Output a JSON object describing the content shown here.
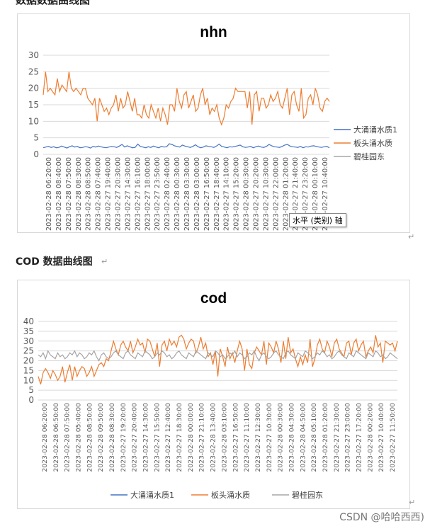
{
  "top_heading": "数据数据曲线图",
  "section_heading": "COD 数据曲线图",
  "paragraph_mark": "↵",
  "tooltip": "水平 (类别) 轴",
  "watermark": "CSDN @哈哈西西)",
  "colors": {
    "series1": "#4472c4",
    "series2": "#ed7d31",
    "series3": "#a5a5a5",
    "grid": "#d9d9d9",
    "axis_text": "#595959"
  },
  "chart_data": [
    {
      "type": "line",
      "title": "nhn",
      "ylim": [
        0,
        30
      ],
      "yticks": [
        0,
        5,
        10,
        15,
        20,
        25,
        30
      ],
      "grid": true,
      "legend": "right",
      "x_tick_labels": [
        "2023-02-28 06:20:00",
        "2023-02-28 08:40:00",
        "2023-02-28 07:50:00",
        "2023-02-28 08:30:00",
        "2023-02-28 08:50:00",
        "2023-02-28 07:40:00",
        "2023-02-27 19:40:00",
        "2023-02-27 20:30:00",
        "2023-02-27 14:30:00",
        "2023-02-27 16:10:00",
        "2023-02-27 18:00:00",
        "2023-02-27 23:50:00",
        "2023-02-28 02:40:00",
        "2023-02-28 00:30:00",
        "2023-02-28 03:30:00",
        "2023-02-28 03:00:00",
        "2023-02-27 16:50:00",
        "2023-02-27 18:40:00",
        "2023-02-27 14:10:00",
        "2023-02-27 15:20:00",
        "2023-02-28 00:30:00",
        "2023-02-27 20:20:00",
        "2023-02-27 10:30:00",
        "2023-02-27 22:00:00",
        "2023-02-28 01:20:00",
        "2023-02-27 21:40:00",
        "2023-02-27 23:20:00",
        "2023-02-28 00:10:00",
        "2023-02-27 10:40:00"
      ],
      "series": [
        {
          "name": "大涌涌水质1",
          "values": [
            2.0,
            2.2,
            2.4,
            2.1,
            2.3,
            2.0,
            2.1,
            2.5,
            2.2,
            1.9,
            2.3,
            2.6,
            2.2,
            2.4,
            2.0,
            2.1,
            2.3,
            2.2,
            1.9,
            2.4,
            2.2,
            2.5,
            2.3,
            2.1,
            2.0,
            2.2,
            2.4,
            2.3,
            2.1,
            2.5,
            3.0,
            2.2,
            2.6,
            2.3,
            2.0,
            2.1,
            3.1,
            2.4,
            2.2,
            2.0,
            2.3,
            2.1,
            2.5,
            2.2,
            2.0,
            2.4,
            2.2,
            2.3,
            3.2,
            3.0,
            2.6,
            2.4,
            2.2,
            2.8,
            2.5,
            2.3,
            2.1,
            2.4,
            2.9,
            2.3,
            2.0,
            2.2,
            2.6,
            2.4,
            2.3,
            2.1,
            2.5,
            3.1,
            2.4,
            2.2,
            2.0,
            2.3,
            2.2,
            2.4,
            2.6,
            2.8,
            2.3,
            2.1,
            2.2,
            2.4,
            2.0,
            2.3,
            2.5,
            2.2,
            2.1,
            2.4,
            3.0,
            2.6,
            2.3,
            2.2,
            2.1,
            2.4,
            2.8,
            3.0,
            2.5,
            2.3,
            2.2,
            2.1,
            2.4,
            2.0,
            2.3,
            2.2,
            2.5,
            2.6,
            2.4,
            2.2,
            2.1,
            2.3,
            2.4,
            2.0
          ]
        },
        {
          "name": "板头涌水质",
          "values": [
            18,
            25,
            19,
            20,
            19,
            18,
            23,
            19,
            21,
            20,
            19,
            25,
            20,
            19,
            20,
            19,
            18,
            20,
            20,
            17,
            16,
            15,
            17,
            10,
            17,
            15,
            13,
            14,
            12,
            14,
            15,
            18,
            13,
            17,
            14,
            15,
            19,
            16,
            13,
            17,
            12,
            12,
            11,
            15,
            12,
            11,
            15,
            13,
            11,
            14,
            10,
            14,
            12,
            9,
            15,
            15,
            13,
            20,
            16,
            14,
            18,
            19,
            14,
            16,
            18,
            13,
            14,
            18,
            20,
            15,
            17,
            12,
            14,
            13,
            15,
            11,
            9,
            11,
            15,
            14,
            16,
            17,
            20,
            19,
            19,
            19,
            19,
            14,
            19,
            9,
            18,
            19,
            13,
            17,
            17,
            14,
            15,
            18,
            16,
            17,
            19,
            15,
            14,
            17,
            20,
            12,
            18,
            19,
            15,
            13,
            20,
            11,
            12,
            17,
            18,
            15,
            20,
            18,
            14,
            13,
            16,
            17,
            16
          ]
        },
        {
          "name": "碧桂园东",
          "values": []
        }
      ]
    },
    {
      "type": "line",
      "title": "cod",
      "ylim": [
        0,
        40
      ],
      "yticks": [
        0,
        5,
        10,
        15,
        20,
        25,
        30,
        35,
        40
      ],
      "grid": true,
      "legend": "bottom",
      "x_tick_labels": [
        "2023-02-28 06:20:00",
        "2023-02-28 06:50:00",
        "2023-02-28 07:50:00",
        "2023-02-28 05:40:00",
        "2023-02-28 08:50:00",
        "2023-02-28 09:50:00",
        "2023-02-28 08:30:00",
        "2023-02-27 19:20:00",
        "2023-02-27 20:40:00",
        "2023-02-27 14:30:00",
        "2023-02-27 15:50:00",
        "2023-02-27 12:40:00",
        "2023-02-27 18:30:00",
        "2023-02-28 00:00:00",
        "2023-02-27 21:10:00",
        "2023-02-28 13:40:00",
        "2023-02-28 03:10:00",
        "2023-02-27 16:50:00",
        "2023-02-27 11:10:00",
        "2023-02-27 12:30:00",
        "2023-02-27 10:30:00",
        "2023-02-28 00:30:00",
        "2023-02-28 04:30:00",
        "2023-02-28 04:50:00",
        "2023-02-28 05:10:00",
        "2023-02-28 01:20:00",
        "2023-02-27 21:30:00",
        "2023-02-27 23:00:00",
        "2023-02-27 17:20:00",
        "2023-02-28 00:20:00",
        "2023-02-27 10:40:00",
        "2023-02-27 11:50:00"
      ],
      "series": [
        {
          "name": "大涌涌水质1",
          "values": []
        },
        {
          "name": "板头涌水质",
          "values": [
            12,
            8,
            14,
            16,
            14,
            11,
            15,
            13,
            10,
            12,
            17,
            9,
            14,
            18,
            10,
            17,
            12,
            15,
            17,
            16,
            12,
            14,
            17,
            12,
            15,
            18,
            19,
            17,
            21,
            20,
            25,
            30,
            26,
            23,
            28,
            30,
            27,
            25,
            30,
            24,
            27,
            31,
            28,
            29,
            24,
            31,
            30,
            26,
            22,
            29,
            17,
            28,
            30,
            25,
            31,
            28,
            30,
            27,
            32,
            33,
            31,
            26,
            29,
            31,
            30,
            24,
            27,
            32,
            26,
            29,
            22,
            24,
            18,
            25,
            12,
            26,
            22,
            17,
            27,
            21,
            24,
            19,
            25,
            30,
            26,
            15,
            26,
            18,
            16,
            24,
            27,
            25,
            23,
            30,
            18,
            29,
            27,
            24,
            30,
            26,
            19,
            30,
            21,
            32,
            24,
            26,
            21,
            17,
            22,
            18,
            23,
            19,
            31,
            17,
            21,
            28,
            31,
            26,
            24,
            30,
            27,
            22,
            29,
            31,
            26,
            24,
            22,
            29,
            30,
            23,
            29,
            31,
            25,
            28,
            30,
            22,
            25,
            27,
            24,
            33,
            27,
            29,
            19,
            30,
            29,
            28,
            29,
            25,
            30
          ]
        },
        {
          "name": "碧桂园东",
          "values": [
            23,
            22,
            24,
            21,
            25,
            23,
            22,
            21,
            24,
            22,
            23,
            21,
            22,
            24,
            23,
            25,
            22,
            24,
            23,
            21,
            22,
            24,
            23,
            25,
            22,
            20,
            23,
            24,
            22,
            21,
            22,
            24,
            25,
            23,
            22,
            21,
            24,
            25,
            23,
            22,
            21,
            24,
            23,
            22,
            25,
            24,
            23,
            21,
            22,
            24,
            23,
            25,
            24,
            22,
            23,
            21,
            22,
            24,
            25,
            23,
            22,
            21,
            24,
            23,
            22,
            25,
            24,
            23,
            22,
            21,
            24,
            23,
            22,
            25,
            24,
            22,
            23,
            21,
            22,
            24,
            23,
            25,
            22,
            24,
            23,
            21,
            22,
            24,
            23,
            25,
            22,
            20,
            23,
            24,
            22,
            21,
            22,
            24,
            25,
            23,
            22,
            21,
            24,
            25,
            23,
            22,
            21,
            24,
            23,
            22,
            25,
            24,
            23,
            21,
            22,
            24,
            23,
            25,
            24,
            22,
            23,
            21,
            22,
            24,
            25,
            23,
            22,
            21,
            24,
            23,
            22,
            25,
            24,
            23,
            22,
            21,
            24,
            23,
            22,
            25,
            24,
            22,
            23,
            21,
            22,
            24,
            23,
            22,
            21
          ]
        }
      ]
    }
  ]
}
